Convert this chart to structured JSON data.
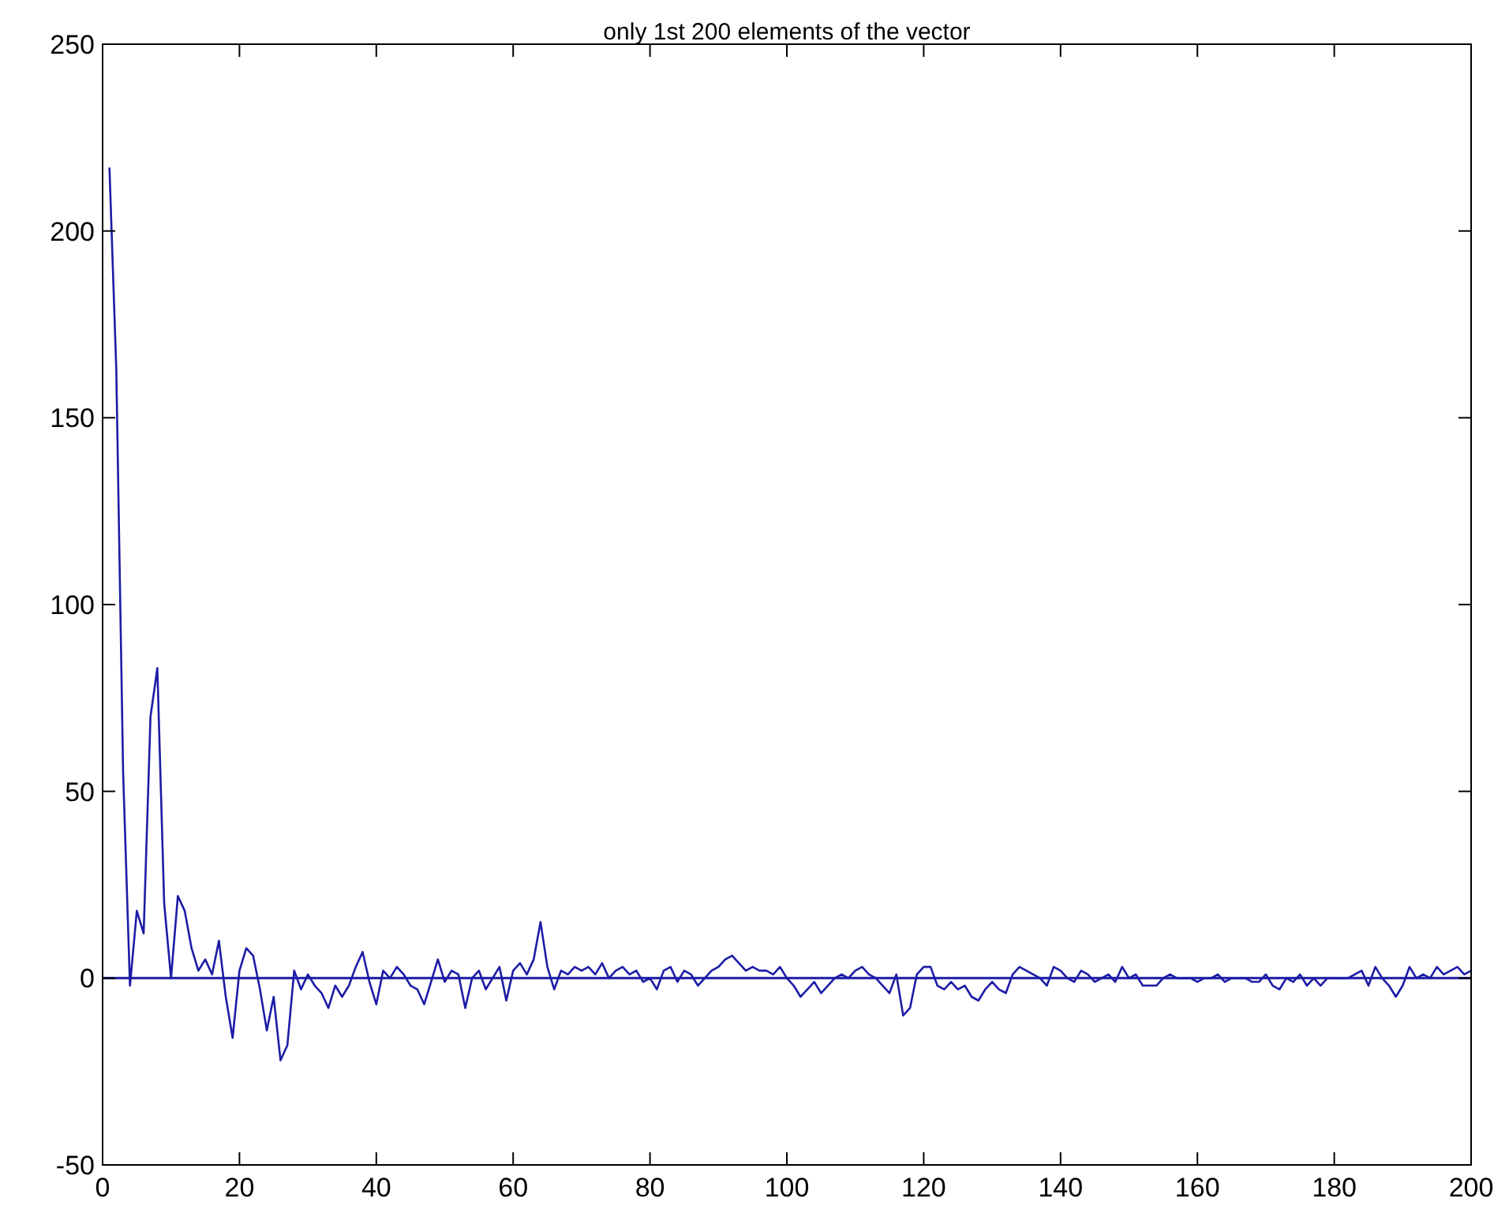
{
  "chart_data": {
    "type": "line",
    "title": "only 1st 200 elements of the vector",
    "x": [
      1,
      2,
      3,
      4,
      5,
      6,
      7,
      8,
      9,
      10,
      11,
      12,
      13,
      14,
      15,
      16,
      17,
      18,
      19,
      20,
      21,
      22,
      23,
      24,
      25,
      26,
      27,
      28,
      29,
      30,
      31,
      32,
      33,
      34,
      35,
      36,
      37,
      38,
      39,
      40,
      41,
      42,
      43,
      44,
      45,
      46,
      47,
      48,
      49,
      50,
      51,
      52,
      53,
      54,
      55,
      56,
      57,
      58,
      59,
      60,
      61,
      62,
      63,
      64,
      65,
      66,
      67,
      68,
      69,
      70,
      71,
      72,
      73,
      74,
      75,
      76,
      77,
      78,
      79,
      80,
      81,
      82,
      83,
      84,
      85,
      86,
      87,
      88,
      89,
      90,
      91,
      92,
      93,
      94,
      95,
      96,
      97,
      98,
      99,
      100,
      101,
      102,
      103,
      104,
      105,
      106,
      107,
      108,
      109,
      110,
      111,
      112,
      113,
      114,
      115,
      116,
      117,
      118,
      119,
      120,
      121,
      122,
      123,
      124,
      125,
      126,
      127,
      128,
      129,
      130,
      131,
      132,
      133,
      134,
      135,
      136,
      137,
      138,
      139,
      140,
      141,
      142,
      143,
      144,
      145,
      146,
      147,
      148,
      149,
      150,
      151,
      152,
      153,
      154,
      155,
      156,
      157,
      158,
      159,
      160,
      161,
      162,
      163,
      164,
      165,
      166,
      167,
      168,
      169,
      170,
      171,
      172,
      173,
      174,
      175,
      176,
      177,
      178,
      179,
      180,
      181,
      182,
      183,
      184,
      185,
      186,
      187,
      188,
      189,
      190,
      191,
      192,
      193,
      194,
      195,
      196,
      197,
      198,
      199,
      200
    ],
    "series": [
      {
        "color": "#1c1ca6",
        "values": [
          217,
          163,
          55,
          -2,
          18,
          12,
          70,
          83,
          20,
          0,
          22,
          18,
          8,
          2,
          5,
          1,
          10,
          -5,
          -16,
          2,
          8,
          6,
          -3,
          -14,
          -5,
          -22,
          -18,
          2,
          -3,
          1,
          -2,
          -4,
          -8,
          -2,
          -5,
          -2,
          3,
          7,
          -1,
          -7,
          2,
          0,
          3,
          1,
          -2,
          -3,
          -7,
          -1,
          5,
          -1,
          2,
          1,
          -8,
          0,
          2,
          -3,
          0,
          3,
          -6,
          2,
          4,
          1,
          5,
          15,
          3,
          -3,
          2,
          1,
          3,
          2,
          3,
          1,
          4,
          0,
          2,
          3,
          1,
          2,
          -1,
          0,
          -3,
          2,
          3,
          -1,
          2,
          1,
          -2,
          0,
          2,
          3,
          5,
          6,
          4,
          2,
          3,
          2,
          2,
          1,
          3,
          0,
          -2,
          -5,
          -3,
          -1,
          -4,
          -2,
          0,
          1,
          0,
          2,
          3,
          1,
          0,
          -2,
          -4,
          1,
          -10,
          -8,
          1,
          3,
          3,
          -2,
          -3,
          -1,
          -3,
          -2,
          -5,
          -6,
          -3,
          -1,
          -3,
          -4,
          1,
          3,
          2,
          1,
          0,
          -2,
          3,
          2,
          0,
          -1,
          2,
          1,
          -1,
          0,
          1,
          -1,
          3,
          0,
          1,
          -2,
          -2,
          -2,
          0,
          1,
          0,
          0,
          0,
          -1,
          0,
          0,
          1,
          -1,
          0,
          0,
          0,
          -1,
          -1,
          1,
          -2,
          -3,
          0,
          -1,
          1,
          -2,
          0,
          -2,
          0,
          0,
          0,
          0,
          1,
          2,
          -2,
          3,
          0,
          -2,
          -5,
          -2,
          3,
          0,
          1,
          0,
          3,
          1,
          2,
          3,
          1,
          2
        ]
      }
    ],
    "xlim": [
      0,
      200
    ],
    "xticks": [
      0,
      20,
      40,
      60,
      80,
      100,
      120,
      140,
      160,
      180,
      200
    ],
    "ylim": [
      -50,
      250
    ],
    "yticks": [
      -50,
      0,
      50,
      100,
      150,
      200,
      250
    ],
    "ref_lines": [
      {
        "axis": "y",
        "value": 0,
        "color": "#1c1ca6"
      }
    ],
    "grid": false
  }
}
